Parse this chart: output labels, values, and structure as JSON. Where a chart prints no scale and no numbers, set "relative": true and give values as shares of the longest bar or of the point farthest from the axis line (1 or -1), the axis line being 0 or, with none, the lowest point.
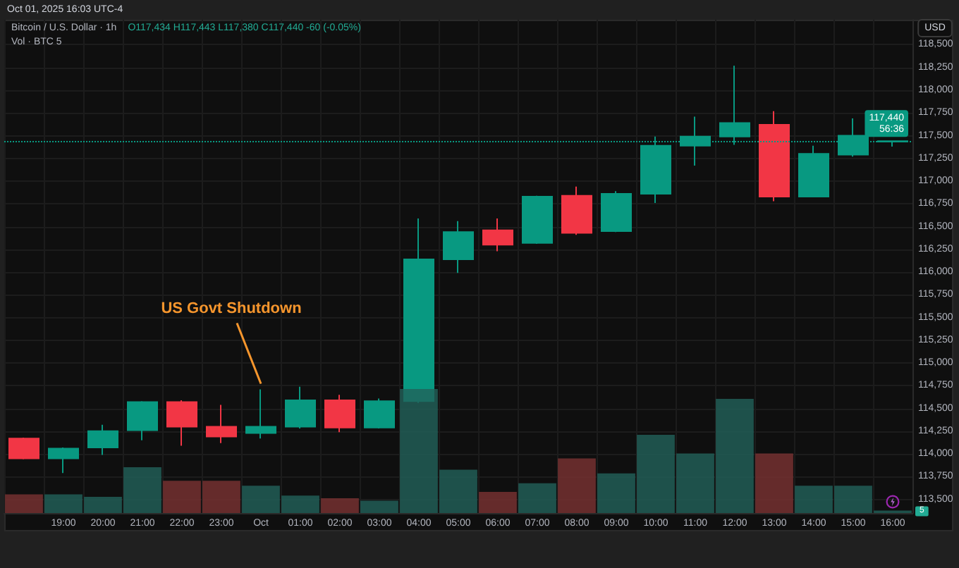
{
  "chart_data": [
    {
      "type": "candlestick",
      "title": "Bitcoin / U.S. Dollar · 1h",
      "subtitle": "O117,434 H117,443 L117,380 C117,440 -60 (-0.05%)",
      "ylabel": "USD",
      "categories": [
        null,
        "19:00",
        "20:00",
        "21:00",
        "22:00",
        "23:00",
        "Oct",
        "01:00",
        "02:00",
        "03:00",
        "04:00",
        "05:00",
        "06:00",
        "07:00",
        "08:00",
        "09:00",
        "10:00",
        "11:00",
        "12:00",
        "13:00",
        "14:00",
        "15:00",
        "16:00"
      ],
      "ohlc": [
        [
          114170,
          114180,
          113940,
          113950
        ],
        [
          113950,
          114070,
          113790,
          114060
        ],
        [
          114070,
          114320,
          113990,
          114250
        ],
        [
          114260,
          114580,
          114150,
          114570
        ],
        [
          114570,
          114590,
          114090,
          114300
        ],
        [
          114300,
          114540,
          114120,
          114190
        ],
        [
          114230,
          114710,
          114170,
          114300
        ],
        [
          114300,
          114740,
          114280,
          114590
        ],
        [
          114590,
          114650,
          114240,
          114290
        ],
        [
          114290,
          114610,
          114280,
          114580
        ],
        [
          114580,
          116590,
          114560,
          116140
        ],
        [
          116140,
          116560,
          115990,
          116440
        ],
        [
          116460,
          116590,
          116230,
          116300
        ],
        [
          116320,
          116840,
          116310,
          116830
        ],
        [
          116840,
          116940,
          116410,
          116430
        ],
        [
          116450,
          116890,
          116440,
          116860
        ],
        [
          116860,
          117490,
          116760,
          117390
        ],
        [
          117390,
          117710,
          117170,
          117490
        ],
        [
          117490,
          118270,
          117400,
          117640
        ],
        [
          117620,
          117770,
          116780,
          116830
        ],
        [
          116830,
          117390,
          116830,
          117300
        ],
        [
          117290,
          117690,
          117270,
          117500
        ],
        [
          117434,
          117443,
          117380,
          117440
        ]
      ],
      "colors": [
        "#f23645",
        "#089981",
        "#089981",
        "#089981",
        "#f23645",
        "#f23645",
        "#089981",
        "#089981",
        "#f23645",
        "#089981",
        "#089981",
        "#089981",
        "#f23645",
        "#089981",
        "#f23645",
        "#089981",
        "#089981",
        "#089981",
        "#089981",
        "#f23645",
        "#089981",
        "#089981",
        "#089981"
      ],
      "ylim": [
        113350,
        118775
      ],
      "yticks": [
        {
          "value": 113500,
          "label": "113,500"
        },
        {
          "value": 113750,
          "label": "113,750"
        },
        {
          "value": 114000,
          "label": "114,000"
        },
        {
          "value": 114250,
          "label": "114,250"
        },
        {
          "value": 114500,
          "label": "114,500"
        },
        {
          "value": 114750,
          "label": "114,750"
        },
        {
          "value": 115000,
          "label": "115,000"
        },
        {
          "value": 115250,
          "label": "115,250"
        },
        {
          "value": 115500,
          "label": "115,500"
        },
        {
          "value": 115750,
          "label": "115,750"
        },
        {
          "value": 116000,
          "label": "116,000"
        },
        {
          "value": 116250,
          "label": "116,250"
        },
        {
          "value": 116500,
          "label": "116,500"
        },
        {
          "value": 116750,
          "label": "116,750"
        },
        {
          "value": 117000,
          "label": "117,000"
        },
        {
          "value": 117250,
          "label": "117,250"
        },
        {
          "value": 117500,
          "label": "117,500"
        },
        {
          "value": 117750,
          "label": "117,750"
        },
        {
          "value": 118000,
          "label": "118,000"
        },
        {
          "value": 118250,
          "label": "118,250"
        },
        {
          "value": 118500,
          "label": "118,500"
        }
      ],
      "grid": true,
      "ref_lines": [
        {
          "axis": "y",
          "value": 117440,
          "label": "117,440\n56:36",
          "color": "#089981",
          "line_style": "dotted"
        }
      ],
      "annotations": [
        {
          "text": "US Govt Shutdown",
          "x": "Oct",
          "y": 114710
        },
        "Oct 01, 2025 16:03 UTC-4"
      ]
    },
    {
      "type": "bar",
      "title": "Vol · BTC 5",
      "relative": true,
      "categories": [
        null,
        null,
        null,
        null,
        null,
        null,
        null,
        null,
        null,
        null,
        null,
        null,
        null,
        null,
        null,
        null,
        null,
        null,
        null,
        null,
        null,
        null,
        null
      ],
      "values": [
        0.15,
        0.15,
        0.13,
        0.37,
        0.26,
        0.26,
        0.22,
        0.14,
        0.12,
        0.1,
        1,
        0.35,
        0.17,
        0.24,
        0.44,
        0.32,
        0.63,
        0.48,
        0.92,
        0.48,
        0.22,
        0.22,
        0.02
      ],
      "colors": [
        "#7b3232",
        "#22625a",
        "#22625a",
        "#22625a",
        "#7b3232",
        "#7b3232",
        "#22625a",
        "#22625a",
        "#7b3232",
        "#22625a",
        "#22625a",
        "#22625a",
        "#7b3232",
        "#22625a",
        "#7b3232",
        "#22625a",
        "#22625a",
        "#22625a",
        "#22625a",
        "#7b3232",
        "#22625a",
        "#22625a",
        "#22625a"
      ],
      "annotations": [
        "5"
      ]
    }
  ]
}
